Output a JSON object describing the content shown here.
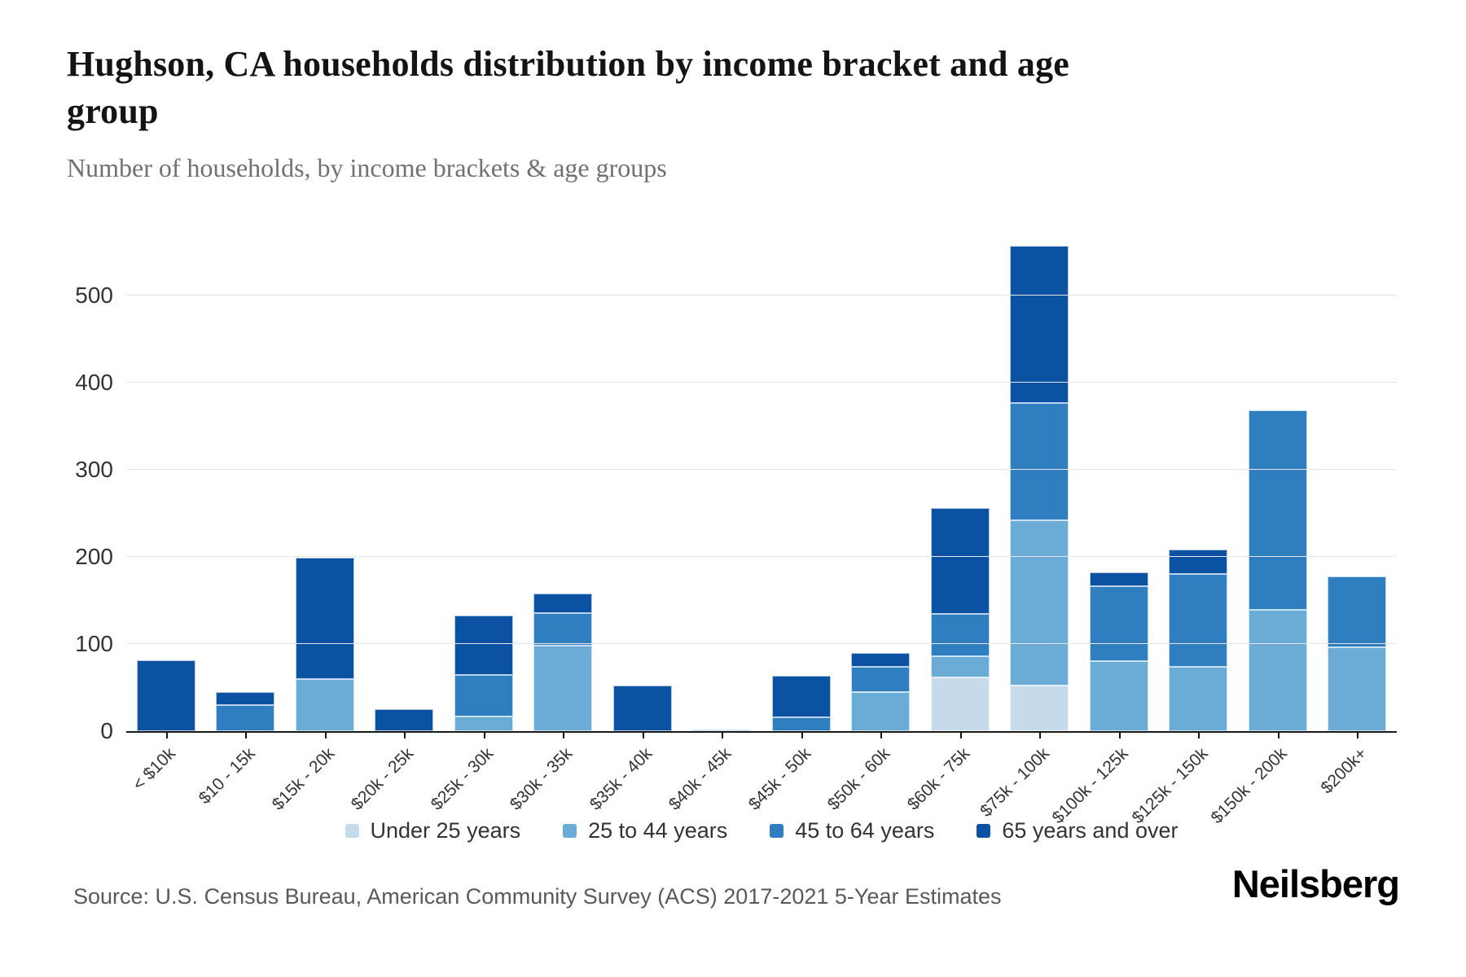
{
  "header": {
    "title": "Hughson, CA households distribution by income bracket and age group",
    "subtitle": "Number of households, by income brackets & age groups"
  },
  "chart_data": {
    "type": "bar",
    "stacked": true,
    "title": "Hughson, CA households distribution by income bracket and age group",
    "xlabel": "",
    "ylabel": "Number of households",
    "categories": [
      "< $10k",
      "$10 - 15k",
      "$15k - 20k",
      "$20k - 25k",
      "$25k - 30k",
      "$30k - 35k",
      "$35k - 40k",
      "$40k - 45k",
      "$45k - 50k",
      "$50k - 60k",
      "$60k - 75k",
      "$75k - 100k",
      "$100k - 125k",
      "$125k - 150k",
      "$150k - 200k",
      "$200k+"
    ],
    "series": [
      {
        "name": "Under 25 years",
        "color": "#c5dbeb",
        "values": [
          0,
          0,
          0,
          0,
          0,
          0,
          0,
          0,
          0,
          0,
          62,
          52,
          0,
          0,
          0,
          0
        ]
      },
      {
        "name": "25 to 44 years",
        "color": "#6bacd7",
        "values": [
          0,
          0,
          60,
          0,
          17,
          98,
          0,
          2,
          0,
          45,
          24,
          190,
          80,
          74,
          139,
          96
        ]
      },
      {
        "name": "45 to 64 years",
        "color": "#2f7fc0",
        "values": [
          0,
          30,
          0,
          0,
          48,
          37,
          0,
          0,
          16,
          29,
          49,
          135,
          86,
          107,
          229,
          81
        ]
      },
      {
        "name": "65 years and over",
        "color": "#0b52a2",
        "values": [
          81,
          15,
          139,
          25,
          68,
          22,
          52,
          0,
          48,
          16,
          122,
          180,
          16,
          28,
          0,
          0
        ]
      }
    ],
    "totals": [
      81,
      45,
      199,
      25,
      133,
      157,
      52,
      2,
      64,
      90,
      257,
      557,
      182,
      209,
      368,
      177
    ],
    "yticks": [
      0,
      100,
      200,
      300,
      400,
      500
    ],
    "ylim": [
      0,
      603
    ],
    "grid": "horizontal",
    "legend_position": "bottom"
  },
  "footer": {
    "source": "Source: U.S. Census Bureau, American Community Survey (ACS) 2017-2021 5-Year Estimates",
    "brand": "Neilsberg"
  }
}
